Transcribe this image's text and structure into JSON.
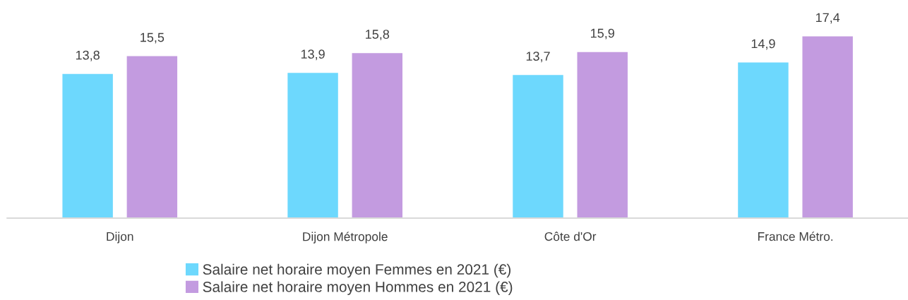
{
  "chart_data": {
    "type": "bar",
    "categories": [
      "Dijon",
      "Dijon Métropole",
      "Côte d'Or",
      "France Métro."
    ],
    "series": [
      {
        "name": "Salaire net horaire moyen Femmes en 2021 (€)",
        "color": "#6dd8fd",
        "values": [
          13.8,
          13.9,
          13.7,
          14.9
        ],
        "value_labels": [
          "13,8",
          "13,9",
          "13,7",
          "14,9"
        ]
      },
      {
        "name": "Salaire net horaire moyen Hommes en 2021 (€)",
        "color": "#c39be0",
        "values": [
          15.5,
          15.8,
          15.9,
          17.4
        ],
        "value_labels": [
          "15,5",
          "15,8",
          "15,9",
          "17,4"
        ]
      }
    ],
    "tick_labels": "x",
    "legend": "bottom",
    "grid": false
  }
}
